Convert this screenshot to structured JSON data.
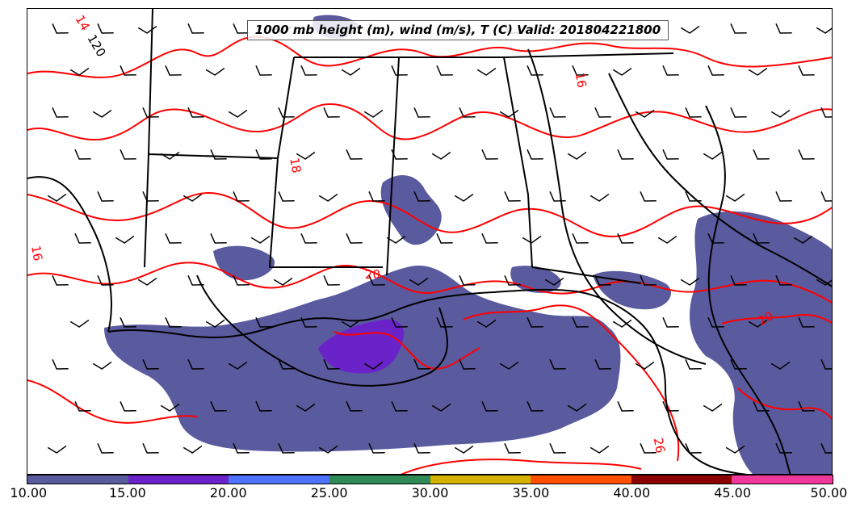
{
  "title": "1000 mb height (m), wind (m/s), T (C) Valid: 201804221800",
  "contour_labels": {
    "height": [
      "120"
    ],
    "temperature": [
      "14",
      "16",
      "18",
      "20",
      "20",
      "26",
      "16"
    ]
  },
  "colorbar": {
    "segments": [
      {
        "range": [
          10,
          15
        ],
        "color": "#5a5a9e"
      },
      {
        "range": [
          15,
          20
        ],
        "color": "#6a23c8"
      },
      {
        "range": [
          20,
          25
        ],
        "color": "#4f72ff"
      },
      {
        "range": [
          25,
          30
        ],
        "color": "#2e8b57"
      },
      {
        "range": [
          30,
          35
        ],
        "color": "#d4b400"
      },
      {
        "range": [
          35,
          40
        ],
        "color": "#ff5000"
      },
      {
        "range": [
          40,
          45
        ],
        "color": "#8b0000"
      },
      {
        "range": [
          45,
          50
        ],
        "color": "#f0389a"
      }
    ],
    "ticks": [
      "10.00",
      "15.00",
      "20.00",
      "25.00",
      "30.00",
      "35.00",
      "40.00",
      "45.00",
      "50.00"
    ]
  },
  "colors": {
    "temperature_contour": "#ff0000",
    "height_contour": "#000000",
    "coastline": "#000000",
    "wind_barb": "#000000"
  }
}
